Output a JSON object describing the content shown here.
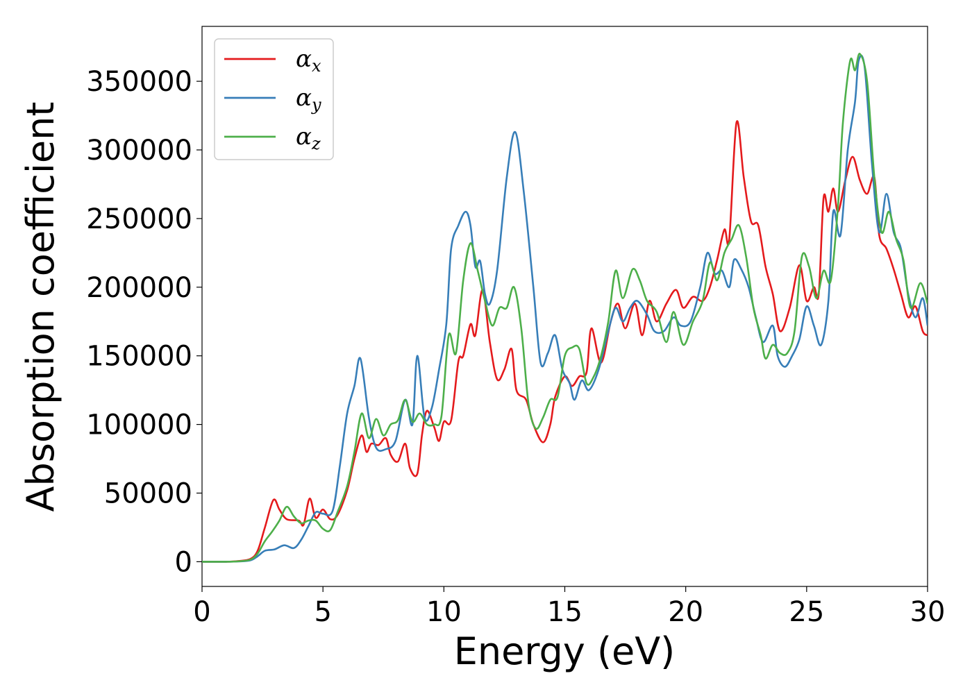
{
  "chart_data": {
    "type": "line",
    "title": "",
    "xlabel": "Energy (eV)",
    "ylabel": "Absorption coefficient",
    "xlim": [
      0,
      30
    ],
    "ylim": [
      -18000,
      390000
    ],
    "xticks": [
      0,
      5,
      10,
      15,
      20,
      25,
      30
    ],
    "yticks": [
      0,
      50000,
      100000,
      150000,
      200000,
      250000,
      300000,
      350000
    ],
    "xtick_labels": [
      "0",
      "5",
      "10",
      "15",
      "20",
      "25",
      "30"
    ],
    "ytick_labels": [
      "0",
      "50000",
      "100000",
      "150000",
      "200000",
      "250000",
      "300000",
      "350000"
    ],
    "grid": false,
    "legend_position": "top-left",
    "series": [
      {
        "name": "αx",
        "symbol": "α",
        "subscript": "x",
        "color": "#e41a1c",
        "points": [
          [
            0,
            0
          ],
          [
            1,
            0
          ],
          [
            1.5,
            500
          ],
          [
            2,
            2000
          ],
          [
            2.3,
            8000
          ],
          [
            2.6,
            25000
          ],
          [
            2.95,
            45000
          ],
          [
            3.2,
            38000
          ],
          [
            3.5,
            31000
          ],
          [
            4,
            30000
          ],
          [
            4.2,
            27000
          ],
          [
            4.45,
            46000
          ],
          [
            4.7,
            32000
          ],
          [
            5.0,
            38000
          ],
          [
            5.3,
            31000
          ],
          [
            5.6,
            34000
          ],
          [
            6.0,
            52000
          ],
          [
            6.3,
            75000
          ],
          [
            6.6,
            92000
          ],
          [
            6.8,
            80000
          ],
          [
            7.0,
            86000
          ],
          [
            7.3,
            85000
          ],
          [
            7.6,
            90000
          ],
          [
            7.8,
            78000
          ],
          [
            8.1,
            73000
          ],
          [
            8.4,
            86000
          ],
          [
            8.6,
            68000
          ],
          [
            8.9,
            64000
          ],
          [
            9.1,
            93000
          ],
          [
            9.3,
            110000
          ],
          [
            9.6,
            98000
          ],
          [
            9.8,
            88000
          ],
          [
            10.0,
            102000
          ],
          [
            10.3,
            103000
          ],
          [
            10.6,
            146000
          ],
          [
            10.8,
            150000
          ],
          [
            11.1,
            173000
          ],
          [
            11.3,
            165000
          ],
          [
            11.6,
            198000
          ],
          [
            11.9,
            160000
          ],
          [
            12.2,
            133000
          ],
          [
            12.5,
            140000
          ],
          [
            12.8,
            155000
          ],
          [
            13.0,
            125000
          ],
          [
            13.4,
            118000
          ],
          [
            13.7,
            100000
          ],
          [
            14.1,
            87000
          ],
          [
            14.4,
            100000
          ],
          [
            14.6,
            120000
          ],
          [
            15.0,
            135000
          ],
          [
            15.3,
            128000
          ],
          [
            15.6,
            135000
          ],
          [
            15.9,
            138000
          ],
          [
            16.1,
            170000
          ],
          [
            16.5,
            145000
          ],
          [
            16.9,
            175000
          ],
          [
            17.2,
            188000
          ],
          [
            17.5,
            170000
          ],
          [
            17.9,
            188000
          ],
          [
            18.2,
            165000
          ],
          [
            18.5,
            190000
          ],
          [
            18.8,
            175000
          ],
          [
            19.2,
            188000
          ],
          [
            19.6,
            198000
          ],
          [
            19.9,
            185000
          ],
          [
            20.3,
            193000
          ],
          [
            20.7,
            190000
          ],
          [
            21.0,
            200000
          ],
          [
            21.3,
            220000
          ],
          [
            21.6,
            242000
          ],
          [
            21.8,
            235000
          ],
          [
            22.1,
            320000
          ],
          [
            22.4,
            280000
          ],
          [
            22.7,
            248000
          ],
          [
            23.0,
            245000
          ],
          [
            23.3,
            215000
          ],
          [
            23.6,
            195000
          ],
          [
            23.9,
            168000
          ],
          [
            24.3,
            185000
          ],
          [
            24.7,
            216000
          ],
          [
            25.0,
            190000
          ],
          [
            25.3,
            200000
          ],
          [
            25.5,
            195000
          ],
          [
            25.7,
            265000
          ],
          [
            25.9,
            255000
          ],
          [
            26.1,
            272000
          ],
          [
            26.3,
            255000
          ],
          [
            26.6,
            278000
          ],
          [
            26.9,
            295000
          ],
          [
            27.2,
            278000
          ],
          [
            27.5,
            268000
          ],
          [
            27.8,
            280000
          ],
          [
            28.0,
            238000
          ],
          [
            28.3,
            228000
          ],
          [
            28.6,
            213000
          ],
          [
            28.9,
            195000
          ],
          [
            29.2,
            178000
          ],
          [
            29.5,
            186000
          ],
          [
            29.8,
            168000
          ],
          [
            30,
            165000
          ]
        ]
      },
      {
        "name": "αy",
        "symbol": "α",
        "subscript": "y",
        "color": "#377eb8",
        "points": [
          [
            0,
            0
          ],
          [
            1,
            0
          ],
          [
            1.5,
            200
          ],
          [
            2,
            1000
          ],
          [
            2.3,
            4000
          ],
          [
            2.6,
            8000
          ],
          [
            3.0,
            9000
          ],
          [
            3.4,
            12000
          ],
          [
            3.8,
            10000
          ],
          [
            4.1,
            16000
          ],
          [
            4.4,
            26000
          ],
          [
            4.7,
            36000
          ],
          [
            5.0,
            35000
          ],
          [
            5.4,
            37000
          ],
          [
            5.7,
            70000
          ],
          [
            6.0,
            108000
          ],
          [
            6.3,
            128000
          ],
          [
            6.55,
            148000
          ],
          [
            6.9,
            105000
          ],
          [
            7.2,
            83000
          ],
          [
            7.6,
            82000
          ],
          [
            8.0,
            88000
          ],
          [
            8.4,
            118000
          ],
          [
            8.7,
            100000
          ],
          [
            8.9,
            150000
          ],
          [
            9.2,
            105000
          ],
          [
            9.5,
            112000
          ],
          [
            9.8,
            140000
          ],
          [
            10.1,
            173000
          ],
          [
            10.3,
            228000
          ],
          [
            10.6,
            245000
          ],
          [
            10.9,
            255000
          ],
          [
            11.1,
            245000
          ],
          [
            11.3,
            215000
          ],
          [
            11.5,
            219000
          ],
          [
            11.7,
            195000
          ],
          [
            11.9,
            188000
          ],
          [
            12.2,
            212000
          ],
          [
            12.6,
            280000
          ],
          [
            12.95,
            313000
          ],
          [
            13.3,
            270000
          ],
          [
            13.7,
            200000
          ],
          [
            14.0,
            145000
          ],
          [
            14.3,
            152000
          ],
          [
            14.6,
            165000
          ],
          [
            14.9,
            140000
          ],
          [
            15.2,
            130000
          ],
          [
            15.4,
            118000
          ],
          [
            15.7,
            132000
          ],
          [
            16.0,
            125000
          ],
          [
            16.4,
            140000
          ],
          [
            16.8,
            168000
          ],
          [
            17.1,
            185000
          ],
          [
            17.4,
            175000
          ],
          [
            17.7,
            185000
          ],
          [
            18.0,
            190000
          ],
          [
            18.4,
            180000
          ],
          [
            18.7,
            168000
          ],
          [
            19.1,
            168000
          ],
          [
            19.5,
            178000
          ],
          [
            19.8,
            172000
          ],
          [
            20.2,
            175000
          ],
          [
            20.6,
            200000
          ],
          [
            20.9,
            225000
          ],
          [
            21.2,
            210000
          ],
          [
            21.5,
            212000
          ],
          [
            21.8,
            200000
          ],
          [
            22.0,
            220000
          ],
          [
            22.3,
            213000
          ],
          [
            22.6,
            200000
          ],
          [
            22.9,
            178000
          ],
          [
            23.2,
            160000
          ],
          [
            23.6,
            172000
          ],
          [
            23.8,
            150000
          ],
          [
            24.1,
            142000
          ],
          [
            24.4,
            150000
          ],
          [
            24.7,
            162000
          ],
          [
            25.0,
            186000
          ],
          [
            25.3,
            172000
          ],
          [
            25.6,
            158000
          ],
          [
            25.9,
            190000
          ],
          [
            26.1,
            255000
          ],
          [
            26.4,
            238000
          ],
          [
            26.7,
            300000
          ],
          [
            27.0,
            335000
          ],
          [
            27.15,
            365000
          ],
          [
            27.4,
            360000
          ],
          [
            27.7,
            290000
          ],
          [
            28.0,
            240000
          ],
          [
            28.3,
            268000
          ],
          [
            28.6,
            240000
          ],
          [
            28.9,
            228000
          ],
          [
            29.2,
            195000
          ],
          [
            29.5,
            178000
          ],
          [
            29.8,
            192000
          ],
          [
            30,
            172000
          ]
        ]
      },
      {
        "name": "αz",
        "symbol": "α",
        "subscript": "z",
        "color": "#4daf4a",
        "points": [
          [
            0,
            0
          ],
          [
            1,
            0
          ],
          [
            1.5,
            300
          ],
          [
            2,
            1500
          ],
          [
            2.3,
            6000
          ],
          [
            2.6,
            15000
          ],
          [
            2.9,
            22000
          ],
          [
            3.2,
            30000
          ],
          [
            3.5,
            40000
          ],
          [
            3.8,
            33000
          ],
          [
            4.1,
            28000
          ],
          [
            4.4,
            30000
          ],
          [
            4.7,
            30000
          ],
          [
            5.0,
            24000
          ],
          [
            5.3,
            23000
          ],
          [
            5.6,
            36000
          ],
          [
            6.0,
            55000
          ],
          [
            6.3,
            80000
          ],
          [
            6.6,
            108000
          ],
          [
            6.9,
            90000
          ],
          [
            7.2,
            104000
          ],
          [
            7.5,
            92000
          ],
          [
            7.8,
            100000
          ],
          [
            8.1,
            103000
          ],
          [
            8.4,
            118000
          ],
          [
            8.7,
            102000
          ],
          [
            9.0,
            108000
          ],
          [
            9.3,
            100000
          ],
          [
            9.6,
            100000
          ],
          [
            9.9,
            106000
          ],
          [
            10.2,
            165000
          ],
          [
            10.5,
            152000
          ],
          [
            10.8,
            205000
          ],
          [
            11.1,
            232000
          ],
          [
            11.4,
            212000
          ],
          [
            11.7,
            190000
          ],
          [
            12.0,
            172000
          ],
          [
            12.3,
            185000
          ],
          [
            12.6,
            185000
          ],
          [
            12.9,
            200000
          ],
          [
            13.2,
            170000
          ],
          [
            13.5,
            115000
          ],
          [
            13.8,
            97000
          ],
          [
            14.1,
            105000
          ],
          [
            14.4,
            118000
          ],
          [
            14.7,
            120000
          ],
          [
            15.0,
            150000
          ],
          [
            15.3,
            156000
          ],
          [
            15.6,
            155000
          ],
          [
            15.9,
            130000
          ],
          [
            16.2,
            135000
          ],
          [
            16.5,
            150000
          ],
          [
            16.8,
            175000
          ],
          [
            17.1,
            212000
          ],
          [
            17.4,
            192000
          ],
          [
            17.8,
            213000
          ],
          [
            18.1,
            205000
          ],
          [
            18.4,
            190000
          ],
          [
            18.8,
            182000
          ],
          [
            19.2,
            160000
          ],
          [
            19.5,
            182000
          ],
          [
            19.9,
            158000
          ],
          [
            20.3,
            175000
          ],
          [
            20.7,
            190000
          ],
          [
            21.0,
            218000
          ],
          [
            21.3,
            205000
          ],
          [
            21.6,
            225000
          ],
          [
            21.9,
            235000
          ],
          [
            22.2,
            245000
          ],
          [
            22.5,
            222000
          ],
          [
            22.8,
            185000
          ],
          [
            23.1,
            165000
          ],
          [
            23.3,
            148000
          ],
          [
            23.6,
            158000
          ],
          [
            23.9,
            152000
          ],
          [
            24.2,
            152000
          ],
          [
            24.5,
            168000
          ],
          [
            24.8,
            222000
          ],
          [
            25.1,
            215000
          ],
          [
            25.4,
            192000
          ],
          [
            25.7,
            212000
          ],
          [
            26.0,
            205000
          ],
          [
            26.3,
            260000
          ],
          [
            26.5,
            320000
          ],
          [
            26.8,
            365000
          ],
          [
            27.0,
            358000
          ],
          [
            27.2,
            370000
          ],
          [
            27.5,
            350000
          ],
          [
            27.8,
            280000
          ],
          [
            28.1,
            240000
          ],
          [
            28.4,
            255000
          ],
          [
            28.7,
            235000
          ],
          [
            29.0,
            220000
          ],
          [
            29.3,
            185000
          ],
          [
            29.7,
            203000
          ],
          [
            30,
            188000
          ]
        ]
      }
    ]
  }
}
